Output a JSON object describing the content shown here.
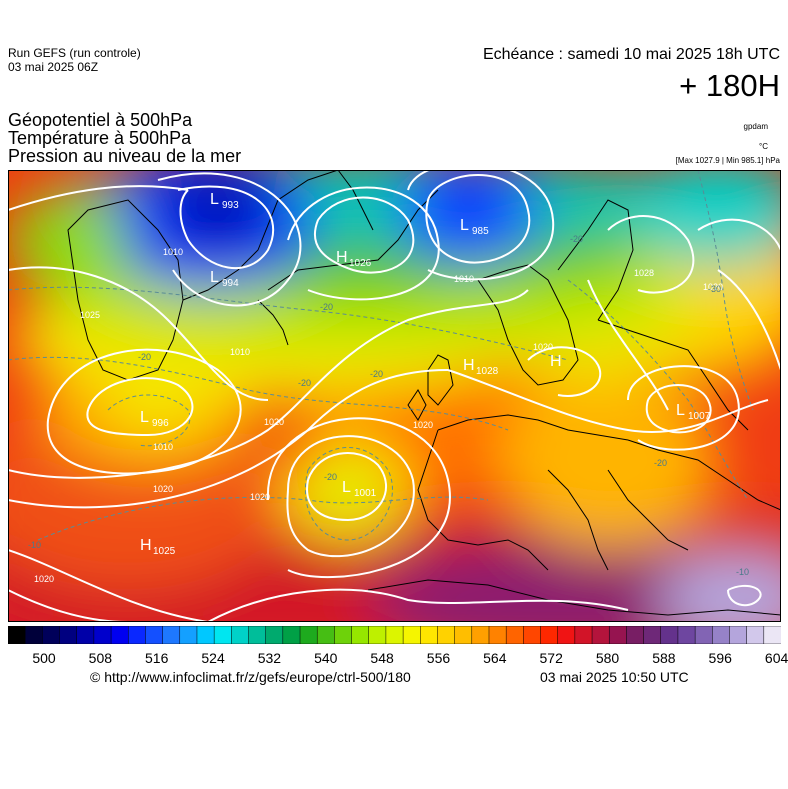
{
  "header": {
    "run_line1": "Run GEFS (run controle)",
    "run_line2": "03 mai 2025 06Z",
    "echeance": "Echéance : samedi 10 mai 2025 18h UTC",
    "step": "+ 180H",
    "var1": "Géopotentiel à 500hPa",
    "var2": "Température à 500hPa",
    "var3": "Pression au niveau de la mer",
    "unit1": "gpdam",
    "unit2": "°C",
    "maxmin": "[Max 1027.9 | Min 985.1] hPa"
  },
  "map": {
    "pressure_centers": [
      {
        "type": "L",
        "value": "993"
      },
      {
        "type": "L",
        "value": "985"
      },
      {
        "type": "H",
        "value": "1026"
      },
      {
        "type": "L",
        "value": "994"
      },
      {
        "type": "H",
        "value": "1028"
      },
      {
        "type": "L",
        "value": "996"
      },
      {
        "type": "L",
        "value": "1001"
      },
      {
        "type": "H",
        "value": "1025"
      },
      {
        "type": "L",
        "value": "1007"
      },
      {
        "type": "H",
        "value": ""
      }
    ],
    "isobar_labels": [
      "1010",
      "1010",
      "1010",
      "1020",
      "1020",
      "1020",
      "1020",
      "1020",
      "1020",
      "1020",
      "1025",
      "1028",
      "1010"
    ],
    "temperature_labels": [
      "-20",
      "-20",
      "-20",
      "-20",
      "-20",
      "-20",
      "-20",
      "-10",
      "-10",
      "-30"
    ]
  },
  "colorbar": {
    "labels": [
      "500",
      "508",
      "516",
      "524",
      "532",
      "540",
      "548",
      "556",
      "564",
      "572",
      "580",
      "588",
      "596",
      "604"
    ],
    "colors": [
      "#000000",
      "#00003a",
      "#00005a",
      "#000080",
      "#0000a8",
      "#0000cc",
      "#0000f0",
      "#0a28ff",
      "#1450ff",
      "#1e78ff",
      "#14a0ff",
      "#00c8ff",
      "#00e6f0",
      "#00d2c8",
      "#00be9a",
      "#00aa6e",
      "#00a046",
      "#1eaa1e",
      "#46be14",
      "#6ed20a",
      "#96e600",
      "#bef000",
      "#dcf500",
      "#f5f500",
      "#ffe600",
      "#ffd200",
      "#ffbe00",
      "#ffa000",
      "#ff8200",
      "#ff6400",
      "#ff4600",
      "#ff2800",
      "#f01414",
      "#d21428",
      "#b4143c",
      "#961450",
      "#781e64",
      "#6e2878",
      "#64328c",
      "#6e46a0",
      "#8264b4",
      "#9682c8",
      "#b4a5dc",
      "#d2c8eb",
      "#ebe6f5"
    ]
  },
  "footer": {
    "credit": "© http://www.infoclimat.fr/z/gefs/europe/ctrl-500/180",
    "generated": "03 mai 2025 10:50 UTC"
  }
}
